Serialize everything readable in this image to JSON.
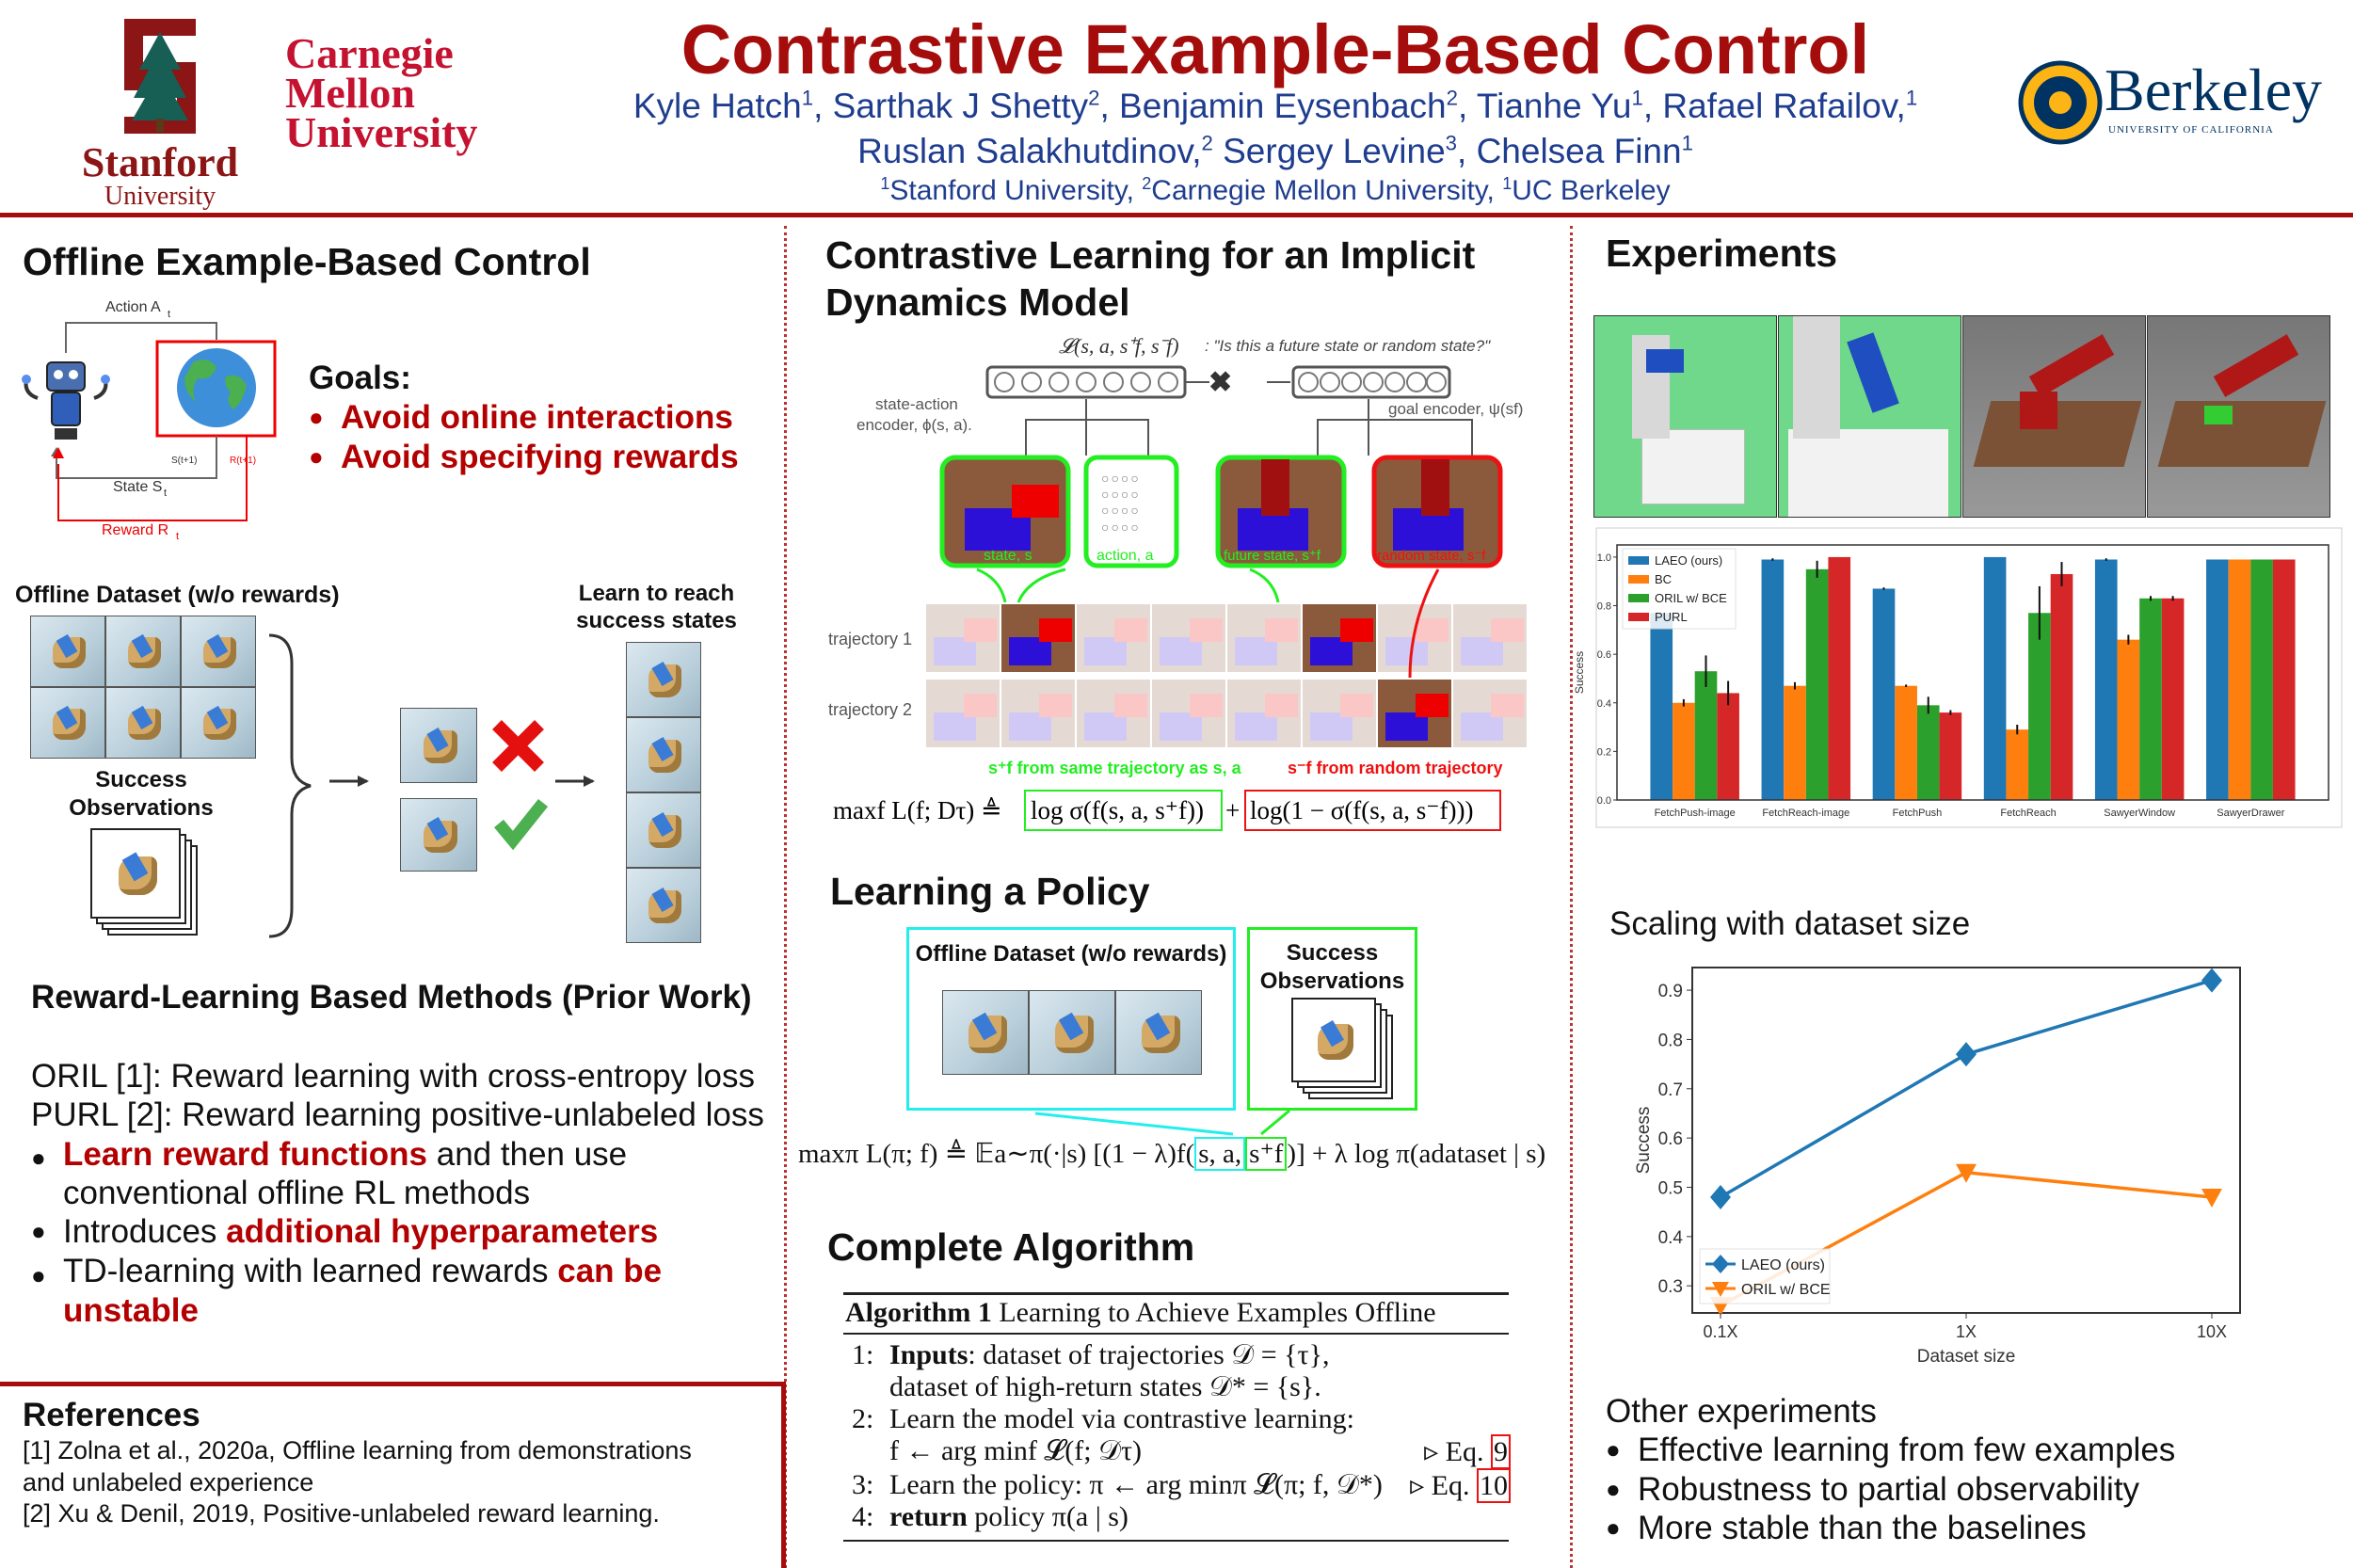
{
  "header": {
    "title": "Contrastive Example-Based Control",
    "authors_line1": [
      {
        "name": "Kyle Hatch",
        "sup": "1",
        "sep": ", "
      },
      {
        "name": "Sarthak J Shetty",
        "sup": "2",
        "sep": ",  "
      },
      {
        "name": "Benjamin Eysenbach",
        "sup": "2",
        "sep": ", "
      },
      {
        "name": "Tianhe Yu",
        "sup": "1",
        "sep": ", "
      },
      {
        "name": "Rafael Rafailov,",
        "sup": "1",
        "sep": ""
      }
    ],
    "authors_line2": [
      {
        "name": "Ruslan Salakhutdinov,",
        "sup": "2",
        "sep": " "
      },
      {
        "name": "Sergey Levine",
        "sup": "3",
        "sep": ", "
      },
      {
        "name": "Chelsea Finn",
        "sup": "1",
        "sep": ""
      }
    ],
    "affiliations": [
      {
        "sup": "1",
        "name": "Stanford University, "
      },
      {
        "sup": "2",
        "name": "Carnegie Mellon University, "
      },
      {
        "sup": "1",
        "name": "UC Berkeley"
      }
    ],
    "logos": {
      "stanford": [
        "Stanford",
        "University"
      ],
      "cmu": [
        "Carnegie",
        "Mellon",
        "University"
      ],
      "berkeley": [
        "Berkeley",
        "UNIVERSITY OF CALIFORNIA"
      ]
    },
    "colors": {
      "title": "#a50d0d",
      "authors": "#1f3d8f",
      "accent_red": "#b30000"
    }
  },
  "left": {
    "heading": "Offline Example-Based Control",
    "diagram": {
      "action": "Action A",
      "action_sub": "t",
      "state": "State S",
      "state_sub": "t",
      "reward": "Reward R",
      "reward_sub": "t",
      "s_next": "S(t+1)",
      "r_next": "R(t+1)"
    },
    "goals_title": "Goals:",
    "goals": [
      "Avoid online interactions",
      "Avoid specifying rewards"
    ],
    "dataset_label": "Offline Dataset (w/o rewards)",
    "success_label": [
      "Success",
      "Observations"
    ],
    "learn_label": [
      "Learn to reach",
      "success states"
    ],
    "prior_heading": "Reward-Learning Based Methods (Prior Work)",
    "prior_lines": [
      "ORIL [1]: Reward learning with cross-entropy loss",
      "PURL [2]: Reward learning positive-unlabeled loss"
    ],
    "prior_bullets": [
      {
        "red": "Learn reward functions",
        "rest": " and then use",
        "line2": "conventional offline RL methods"
      },
      {
        "pre": "Introduces ",
        "red": "additional hyperparameters"
      },
      {
        "pre": "TD-learning with learned rewards ",
        "red": "can be",
        "line2red": "unstable"
      }
    ],
    "references_heading": "References",
    "references": [
      "[1] Zolna et al., 2020a, Offline learning from demonstrations",
      "and unlabeled experience",
      "[2] Xu & Denil, 2019, Positive-unlabeled reward learning."
    ]
  },
  "middle": {
    "heading": [
      "Contrastive Learning for an Implicit",
      "Dynamics Model"
    ],
    "figure": {
      "loss": "𝓛(s, a, s⁺f, s⁻f)",
      "question": ": \"Is this a future state or random state?\"",
      "sa_encoder": [
        "state-action",
        "encoder, ϕ(s, a)."
      ],
      "goal_encoder": "goal encoder, ψ(sf)",
      "state": "state, s",
      "action": "action, a",
      "future": "future state, s⁺f",
      "random": "random state, s⁻f",
      "traj1": "trajectory 1",
      "traj2": "trajectory 2",
      "caption_green": "s⁺f  from same trajectory as s, a",
      "caption_red": "s⁻f  from random trajectory",
      "eq_left": "maxf L(f; Dτ) ≜",
      "eq_green": "log σ(f(s, a, s⁺f))",
      "eq_plus": "+",
      "eq_red": "log(1 − σ(f(s, a, s⁻f)))"
    },
    "policy_heading": "Learning a Policy",
    "policy_dataset": "Offline Dataset (w/o rewards)",
    "policy_success": [
      "Success",
      "Observations"
    ],
    "policy_eq": {
      "pre": "maxπ L(π; f) ≜ 𝔼a∼π(·|s) [(1 − λ)f(",
      "cyan": "s, a,",
      "green": "s⁺f",
      "post": ")] + λ log π(adataset | s)"
    },
    "algo_heading": "Complete Algorithm",
    "algorithm": {
      "title_bold": "Algorithm 1",
      "title": " Learning to Achieve Examples Offline",
      "lines": [
        {
          "num": "1:",
          "bold": "Inputs",
          "text": ":   dataset  of  trajectories  𝒟  =  {τ},"
        },
        {
          "num": "",
          "bold": "",
          "text": "dataset of high-return states 𝒟* = {s}."
        },
        {
          "num": "2:",
          "bold": "",
          "text": "Learn  the  model  via  contrastive  learning:"
        },
        {
          "num": "",
          "bold": "",
          "text": "f ← arg minf 𝓛(f; 𝒟τ)",
          "ref": "▹ Eq. ",
          "eq": "9"
        },
        {
          "num": "3:",
          "bold": "",
          "text": "Learn the policy: π ← arg minπ 𝓛(π; f, 𝒟*)",
          "ref": "▹ Eq. ",
          "eq": "10"
        },
        {
          "num": "4:",
          "bold": "return",
          "text": " policy π(a | s)"
        }
      ]
    }
  },
  "right": {
    "heading": "Experiments",
    "scaling_heading": "Scaling with dataset size",
    "other_heading": "Other experiments",
    "other_bullets": [
      "Effective learning from few examples",
      "Robustness to partial observability",
      "More stable than the baselines"
    ]
  },
  "chart_data": [
    {
      "type": "bar",
      "categories": [
        "FetchPush-image",
        "FetchReach-image",
        "FetchPush",
        "FetchReach",
        "SawyerWindow",
        "SawyerDrawer"
      ],
      "series": [
        {
          "name": "LAEO (ours)",
          "color": "#1f77b4",
          "values": [
            0.77,
            0.99,
            0.87,
            1.0,
            0.99,
            0.99
          ],
          "errors": [
            0.0,
            0.005,
            0.005,
            0.0,
            0.005,
            0.003
          ]
        },
        {
          "name": "BC",
          "color": "#ff7f0e",
          "values": [
            0.4,
            0.47,
            0.47,
            0.29,
            0.66,
            0.99
          ],
          "errors": [
            0.015,
            0.015,
            0.005,
            0.02,
            0.02,
            0.0
          ]
        },
        {
          "name": "ORIL w/ BCE",
          "color": "#2ca02c",
          "values": [
            0.53,
            0.95,
            0.39,
            0.77,
            0.83,
            0.99
          ],
          "errors": [
            0.065,
            0.035,
            0.035,
            0.11,
            0.01,
            0.003
          ]
        },
        {
          "name": "PURL",
          "color": "#d62728",
          "values": [
            0.44,
            1.0,
            0.36,
            0.93,
            0.83,
            0.99
          ],
          "errors": [
            0.05,
            0.0,
            0.01,
            0.05,
            0.01,
            0.002
          ]
        }
      ],
      "ylabel": "Success",
      "ylim": [
        0,
        1.05
      ],
      "yticks": [
        "0.0",
        "0.2",
        "0.4",
        "0.6",
        "0.8",
        "1.0"
      ],
      "legend": "top-left",
      "grid": false
    },
    {
      "type": "line",
      "title": "Scaling with dataset size",
      "x": [
        "0.1X",
        "1X",
        "10X"
      ],
      "series": [
        {
          "name": "LAEO (ours)",
          "color": "#1f77b4",
          "marker": "diamond",
          "values": [
            0.48,
            0.77,
            0.92
          ]
        },
        {
          "name": "ORIL w/ BCE",
          "color": "#ff7f0e",
          "marker": "triangle-down",
          "values": [
            0.26,
            0.53,
            0.48
          ]
        }
      ],
      "xlabel": "Dataset size",
      "ylabel": "Success",
      "ylim": [
        0.245,
        0.946
      ],
      "yticks": [
        "0.3",
        "0.4",
        "0.5",
        "0.6",
        "0.7",
        "0.8",
        "0.9"
      ],
      "legend": "bottom-left",
      "grid": false
    }
  ]
}
